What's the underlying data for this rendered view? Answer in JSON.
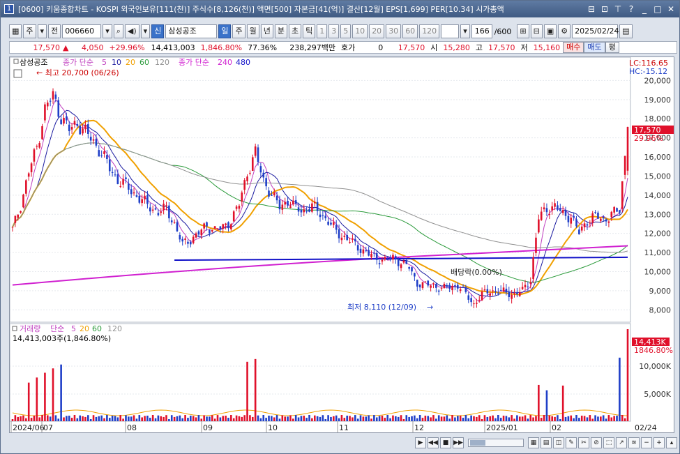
{
  "window": {
    "number": "1",
    "title": "[0600] 키움종합차트 - KOSPI 외국인보유[111(천)] 주식수[8,126(천)] 액면[500] 자본금[41(억)] 결산[12월] EPS[1,699] PER[10.34] 시가총액"
  },
  "toolbar": {
    "market": "주",
    "prev_label": "전",
    "code": "006660",
    "stock_badge": "신",
    "stock_name": "삼성공조",
    "periods": [
      "일",
      "주",
      "월",
      "년",
      "분",
      "초",
      "틱"
    ],
    "period_selected": "일",
    "intervals": [
      "1",
      "3",
      "5",
      "10",
      "20",
      "30",
      "60",
      "120"
    ],
    "count": "166",
    "count_total": "/600",
    "date": "2025/02/24"
  },
  "quote": {
    "price": "17,570",
    "change": "4,050",
    "change_pct": "+29.96%",
    "volume": "14,413,003",
    "vol_pct": "1,846.80%",
    "ratio": "77.36%",
    "amount": "238,297백만",
    "hoga_label": "호가",
    "hoga_value": "0",
    "ask": "17,570",
    "open_label": "시",
    "open": "15,280",
    "high_label": "고",
    "high": "17,570",
    "low_label": "저",
    "low": "15,160",
    "buy_label": "매수",
    "sell_label": "매도",
    "avg_label": "평"
  },
  "legend": {
    "name": "삼성공조",
    "ma_short": "종가 단순",
    "ma_short_periods": [
      "5",
      "10",
      "20",
      "60",
      "120"
    ],
    "ma_long": "종가 단순",
    "ma_long_periods": [
      "240",
      "480"
    ]
  },
  "vol_legend": {
    "title": "거래량",
    "ma": "단순",
    "periods": [
      "5",
      "20",
      "60",
      "120"
    ],
    "summary": "14,413,003주(1,846.80%)"
  },
  "annotations": {
    "high_marker": "최고 20,700 (06/26)",
    "low_marker": "최저 8,110 (12/09)",
    "dividend": "배당락(0.00%)",
    "lc": "LC:116.65",
    "hc": "HC:-15.12",
    "last_price": "17,570",
    "last_pct": "29.96%",
    "last_vol": "14,413K",
    "last_vol_pct": "1846.80%",
    "end_date": "02/24"
  },
  "colors": {
    "up": "#e0102a",
    "down": "#1f3fc8",
    "ma5": "#c040c0",
    "ma10": "#1a1aa0",
    "ma20": "#f0a000",
    "ma60": "#2a9a3a",
    "ma120": "#909090",
    "ma240": "#d020d0",
    "ma480": "#1010c8"
  },
  "chart_data": {
    "type": "candlestick",
    "ylim": [
      7500,
      21000
    ],
    "yticks": [
      8000,
      9000,
      10000,
      11000,
      12000,
      13000,
      14000,
      15000,
      16000,
      17000,
      18000,
      19000,
      20000
    ],
    "vol_yticks": [
      "5,000K",
      "10,000K"
    ],
    "x_labels": [
      "2024/06",
      "07",
      "08",
      "09",
      "10",
      "11",
      "12",
      "2025/01",
      "02"
    ],
    "price_path": [
      [
        0,
        12200
      ],
      [
        3,
        13500
      ],
      [
        6,
        15200
      ],
      [
        9,
        16500
      ],
      [
        12,
        18500
      ],
      [
        15,
        19200
      ],
      [
        18,
        18100
      ],
      [
        21,
        17400
      ],
      [
        24,
        17800
      ],
      [
        27,
        17300
      ],
      [
        30,
        16800
      ],
      [
        33,
        16200
      ],
      [
        36,
        15400
      ],
      [
        39,
        14800
      ],
      [
        42,
        14500
      ],
      [
        45,
        14100
      ],
      [
        48,
        13700
      ],
      [
        51,
        13400
      ],
      [
        54,
        13100
      ],
      [
        57,
        13300
      ],
      [
        60,
        12500
      ],
      [
        63,
        11400
      ],
      [
        66,
        11700
      ],
      [
        69,
        12000
      ],
      [
        72,
        12400
      ],
      [
        75,
        12200
      ],
      [
        78,
        12300
      ],
      [
        81,
        12700
      ],
      [
        84,
        13500
      ],
      [
        87,
        15200
      ],
      [
        90,
        16200
      ],
      [
        93,
        14800
      ],
      [
        96,
        14000
      ],
      [
        99,
        13400
      ],
      [
        102,
        13700
      ],
      [
        105,
        13300
      ],
      [
        108,
        13200
      ],
      [
        111,
        13400
      ],
      [
        114,
        13100
      ],
      [
        117,
        12600
      ],
      [
        120,
        12100
      ],
      [
        123,
        11800
      ],
      [
        126,
        11500
      ],
      [
        129,
        11200
      ],
      [
        132,
        10900
      ],
      [
        135,
        10700
      ],
      [
        138,
        10600
      ],
      [
        141,
        10700
      ],
      [
        144,
        10500
      ],
      [
        147,
        10200
      ],
      [
        150,
        9400
      ],
      [
        153,
        9300
      ],
      [
        156,
        9300
      ],
      [
        159,
        9100
      ],
      [
        162,
        9200
      ],
      [
        165,
        9300
      ],
      [
        168,
        8800
      ],
      [
        171,
        8300
      ],
      [
        174,
        8800
      ],
      [
        177,
        9000
      ],
      [
        180,
        9000
      ],
      [
        183,
        8900
      ],
      [
        186,
        8800
      ],
      [
        189,
        9000
      ],
      [
        192,
        9600
      ],
      [
        195,
        12800
      ],
      [
        198,
        13300
      ],
      [
        201,
        13400
      ],
      [
        204,
        13000
      ],
      [
        207,
        12900
      ],
      [
        210,
        12000
      ],
      [
        213,
        12700
      ],
      [
        216,
        12900
      ],
      [
        219,
        12700
      ],
      [
        222,
        13000
      ],
      [
        225,
        13200
      ],
      [
        228,
        17570
      ]
    ]
  }
}
